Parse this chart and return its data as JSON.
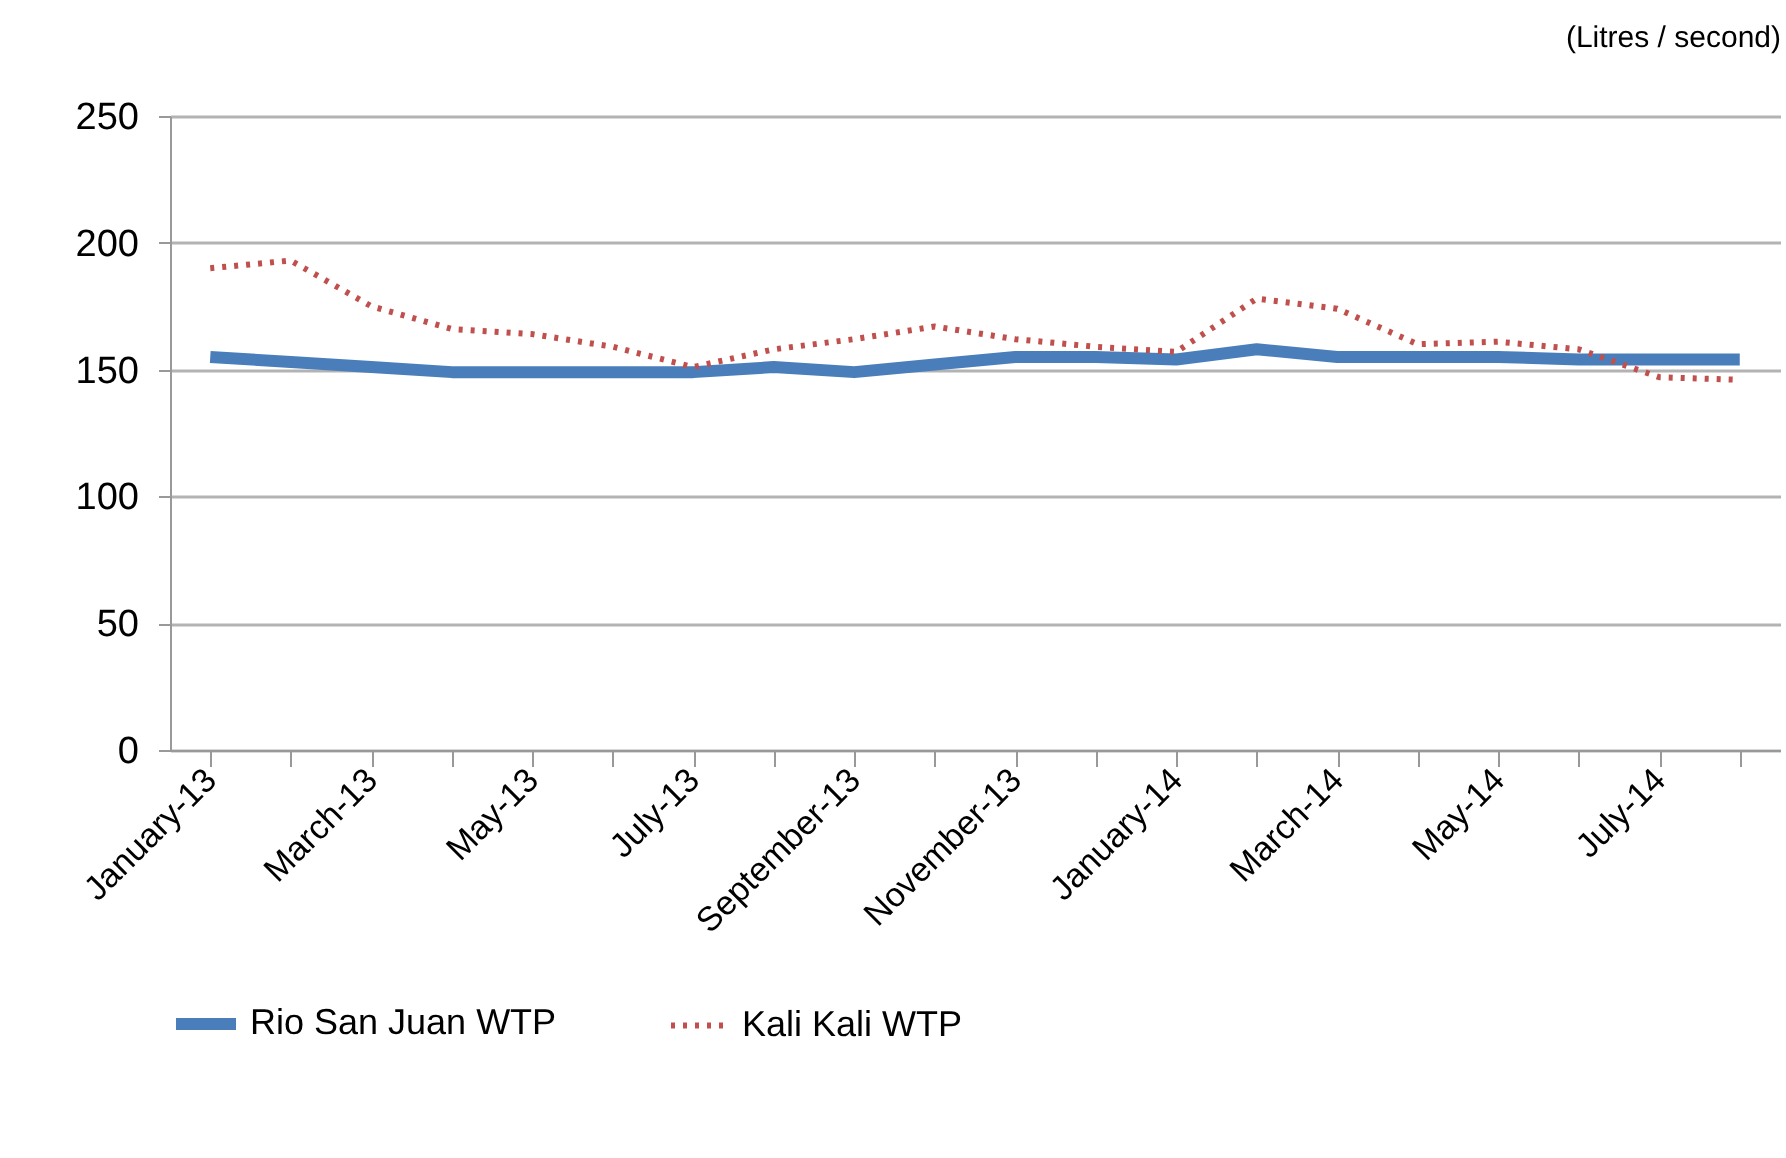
{
  "chart_data": {
    "type": "line",
    "ylabel": "(Litres / second)",
    "categories": [
      "January-13",
      null,
      "March-13",
      null,
      "May-13",
      null,
      "July-13",
      null,
      "September-13",
      null,
      "November-13",
      null,
      "January-14",
      null,
      "March-14",
      null,
      "May-14",
      null,
      "July-14",
      null
    ],
    "series": [
      {
        "name": "Rio San Juan WTP",
        "color": "#4a7ebb",
        "line_style": "solid",
        "values": [
          155,
          153,
          151,
          149,
          149,
          149,
          149,
          151,
          149,
          152,
          155,
          155,
          154,
          158,
          155,
          155,
          155,
          154,
          154,
          154
        ]
      },
      {
        "name": "Kali Kali WTP",
        "color": "#c0504d",
        "line_style": "dotted",
        "values": [
          190,
          193,
          175,
          166,
          164,
          159,
          151,
          158,
          162,
          167,
          162,
          159,
          157,
          178,
          174,
          160,
          161,
          158,
          147,
          146
        ]
      }
    ],
    "ylim": [
      0,
      250
    ],
    "yticks": [
      0,
      50,
      100,
      150,
      200,
      250
    ],
    "grid": "y",
    "legend": "bottom",
    "marker": "none"
  }
}
